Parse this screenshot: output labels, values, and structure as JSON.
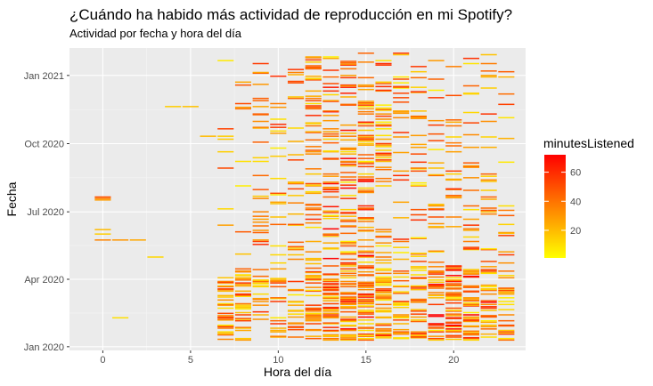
{
  "chart_data": {
    "type": "heatmap",
    "title": "¿Cuándo ha habido más actividad de reproducción en mi Spotify?",
    "subtitle": "Actividad por fecha y hora del día",
    "xlabel": "Hora del día",
    "ylabel": "Fecha",
    "xlim": [
      -1.9,
      24.1
    ],
    "ylim": [
      "2019-12-27",
      "2021-02-07"
    ],
    "x_ticks": [
      0,
      5,
      10,
      15,
      20
    ],
    "x_tick_labels": [
      "0",
      "5",
      "10",
      "15",
      "20"
    ],
    "y_ticks": [
      "2020-01-01",
      "2020-04-01",
      "2020-07-01",
      "2020-10-01",
      "2021-01-01"
    ],
    "y_tick_labels": [
      "Jan 2020",
      "Apr 2020",
      "Jul 2020",
      "Oct 2020",
      "Jan 2021"
    ],
    "grid": true,
    "legend": {
      "title": "minutesListened",
      "position": "right",
      "ticks": [
        20,
        40,
        60
      ],
      "tick_labels": [
        "20",
        "40",
        "60"
      ],
      "range": [
        1,
        72
      ]
    },
    "colors": {
      "low": "#ffff00",
      "high": "#ff0000",
      "panel": "#ebebeb",
      "grid": "#ffffff"
    },
    "values": [
      {
        "hour": 0,
        "date": "2020-07-17",
        "minutes": 28
      },
      {
        "hour": 0,
        "date": "2020-07-19",
        "minutes": 35
      },
      {
        "hour": 0,
        "date": "2020-07-21",
        "minutes": 50
      },
      {
        "hour": 0,
        "date": "2020-06-07",
        "minutes": 20
      },
      {
        "hour": 0,
        "date": "2020-06-01",
        "minutes": 15
      },
      {
        "hour": 0,
        "date": "2020-05-24",
        "minutes": 35
      },
      {
        "hour": 1,
        "date": "2020-05-24",
        "minutes": 30
      },
      {
        "hour": 2,
        "date": "2020-05-24",
        "minutes": 25
      },
      {
        "hour": 3,
        "date": "2020-05-01",
        "minutes": 12
      },
      {
        "hour": 1,
        "date": "2020-02-09",
        "minutes": 10
      },
      {
        "hour": 4,
        "date": "2020-11-20",
        "minutes": 15
      },
      {
        "hour": 5,
        "date": "2020-11-20",
        "minutes": 18
      },
      {
        "hour": 6,
        "date": "2020-10-11",
        "minutes": 20
      },
      {
        "hour": 7,
        "date": "2020-10-11",
        "minutes": 15
      },
      {
        "hour": 8,
        "date": "2020-11-19",
        "minutes": 30
      },
      {
        "hour": 8,
        "date": "2020-11-17",
        "minutes": 40
      },
      {
        "hour": 9,
        "date": "2020-11-20",
        "minutes": 25
      },
      {
        "hour": 10,
        "date": "2020-11-19",
        "minutes": 30
      }
    ]
  }
}
